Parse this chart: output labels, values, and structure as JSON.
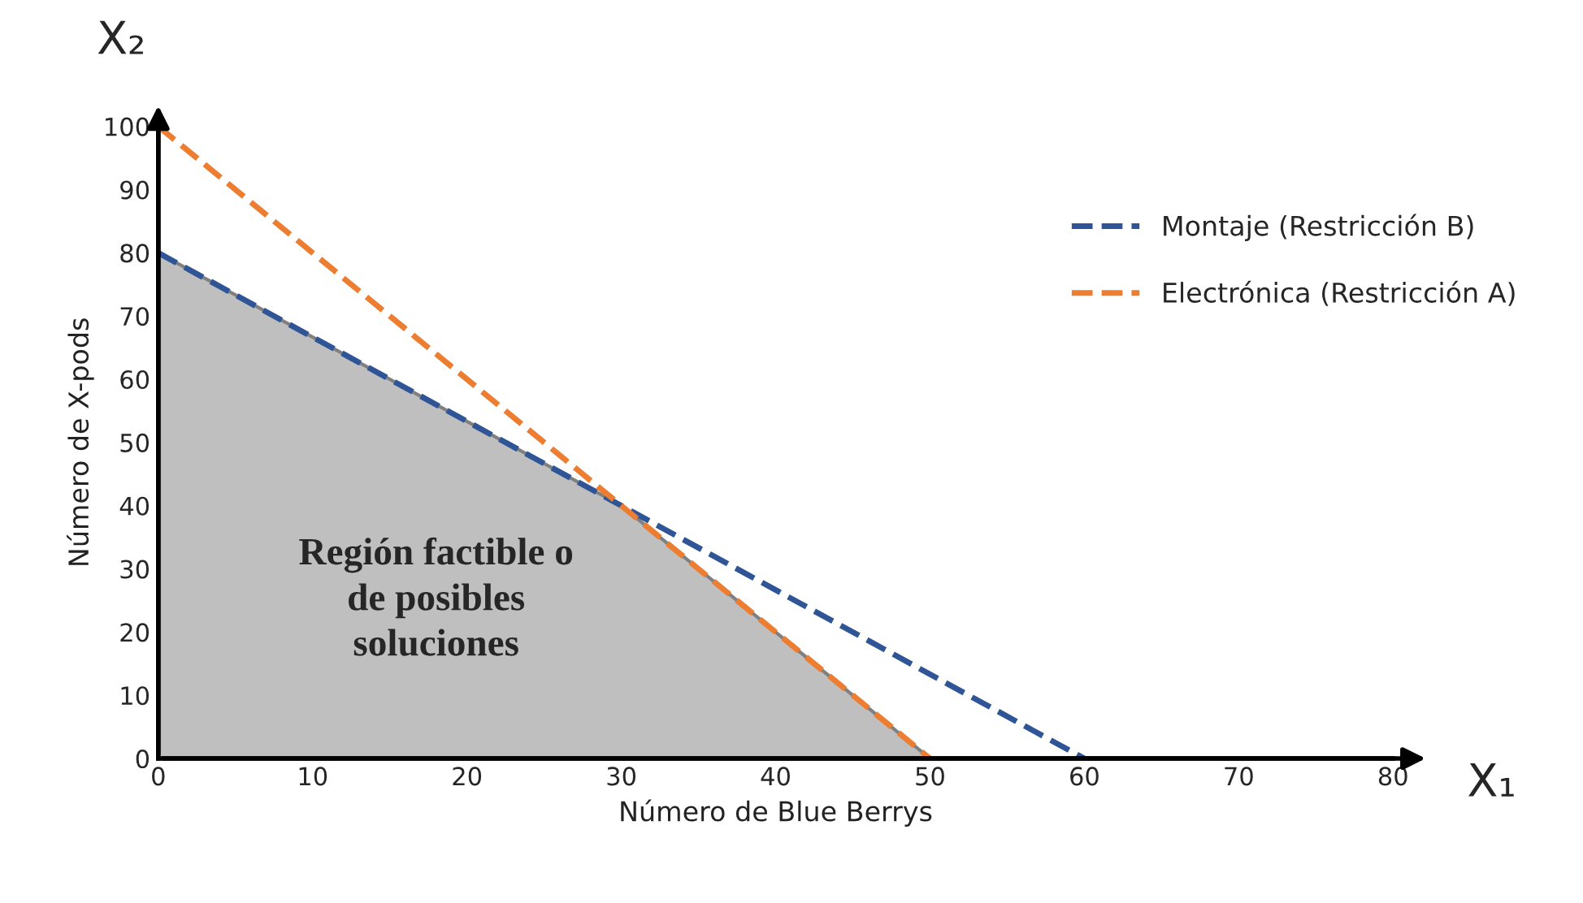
{
  "chart_data": {
    "type": "line",
    "xlabel": "Número de Blue Berrys",
    "ylabel": "Número de X-pods",
    "xlim": [
      0,
      80
    ],
    "ylim": [
      0,
      100
    ],
    "xticks": [
      0,
      10,
      20,
      30,
      40,
      50,
      60,
      70,
      80
    ],
    "yticks": [
      0,
      10,
      20,
      30,
      40,
      50,
      60,
      70,
      80,
      90,
      100
    ],
    "grid": false,
    "legend": "top right",
    "line_style": "dashed",
    "series": [
      {
        "type": "area",
        "color": "#bfbfbf",
        "x": [
          0,
          30,
          50
        ],
        "values": [
          80,
          40,
          0
        ]
      },
      {
        "name": "Montaje (Restricción B)",
        "color": "#2f5597",
        "x": [
          0,
          60
        ],
        "values": [
          80,
          0
        ]
      },
      {
        "name": "Electrónica (Restricción A)",
        "color": "#ed7d31",
        "x": [
          0,
          50
        ],
        "values": [
          100,
          0
        ]
      }
    ],
    "annotations": [
      "Región factible o\nde posibles\nsoluciones",
      "X₁",
      "X₂"
    ]
  }
}
